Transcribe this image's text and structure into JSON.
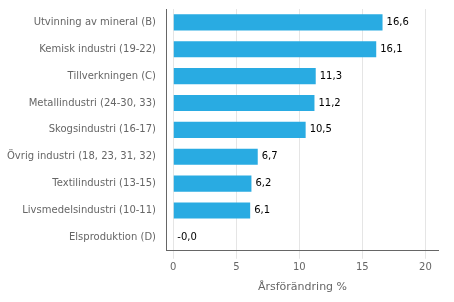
{
  "chart_data": {
    "type": "bar",
    "orientation": "horizontal",
    "categories": [
      "Elsproduktion (D)",
      "Livsmedelsindustri (10-11)",
      "Textilindustri (13-15)",
      "Övrig industri (18, 23, 31, 32)",
      "Skogsindustri (16-17)",
      "Metallindustri (24-30, 33)",
      "Tillverkningen (C)",
      "Kemisk industri (19-22)",
      "Utvinning av mineral (B)"
    ],
    "values": [
      0.0,
      6.1,
      6.2,
      6.7,
      10.5,
      11.2,
      11.3,
      16.1,
      16.6
    ],
    "value_labels": [
      "-0,0",
      "6,1",
      "6,2",
      "6,7",
      "10,5",
      "11,2",
      "11,3",
      "16,1",
      "16,6"
    ],
    "data_labels": true,
    "color": "#29abe2",
    "xlabel": "Årsförändring %",
    "xlim": [
      -0.5,
      21
    ],
    "xticks": [
      0,
      5,
      10,
      15,
      20
    ],
    "grid": true
  }
}
